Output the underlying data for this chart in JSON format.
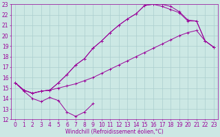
{
  "bg_color": "#cce8e4",
  "grid_color": "#aacece",
  "line_color": "#990099",
  "xlim": [
    -0.5,
    23.5
  ],
  "ylim": [
    12,
    23
  ],
  "xticks": [
    0,
    1,
    2,
    3,
    4,
    5,
    6,
    7,
    8,
    9,
    10,
    11,
    12,
    13,
    14,
    15,
    16,
    17,
    18,
    19,
    20,
    21,
    22,
    23
  ],
  "yticks": [
    12,
    13,
    14,
    15,
    16,
    17,
    18,
    19,
    20,
    21,
    22,
    23
  ],
  "xlabel": "Windchill (Refroidissement éolien,°C)",
  "series": [
    {
      "x": [
        0,
        1,
        2,
        3,
        4,
        5,
        6,
        7,
        8,
        9
      ],
      "y": [
        15.5,
        14.7,
        14.0,
        13.7,
        14.1,
        13.8,
        12.7,
        12.3,
        12.7,
        13.5
      ]
    },
    {
      "x": [
        0,
        1,
        2,
        3,
        4,
        5,
        6,
        7,
        8,
        9,
        10,
        11,
        12,
        13,
        14,
        15,
        16,
        17,
        18,
        19,
        20,
        21,
        22,
        23
      ],
      "y": [
        15.5,
        14.8,
        14.5,
        14.7,
        14.8,
        15.0,
        15.2,
        15.4,
        15.7,
        16.0,
        16.4,
        16.8,
        17.2,
        17.6,
        18.0,
        18.4,
        18.8,
        19.2,
        19.6,
        20.0,
        20.3,
        20.5,
        19.5,
        18.9
      ]
    },
    {
      "x": [
        0,
        1,
        2,
        3,
        4,
        5,
        6,
        7,
        8,
        9,
        10,
        11,
        12,
        13,
        14,
        15,
        16,
        17,
        18,
        19,
        20,
        21,
        22,
        23
      ],
      "y": [
        15.5,
        14.8,
        14.5,
        14.7,
        14.8,
        15.5,
        16.3,
        17.2,
        17.8,
        18.8,
        19.5,
        20.3,
        21.0,
        21.6,
        22.1,
        22.9,
        23.0,
        23.0,
        22.8,
        22.3,
        21.5,
        21.4,
        19.5,
        18.9
      ]
    },
    {
      "x": [
        0,
        1,
        2,
        3,
        4,
        5,
        6,
        7,
        8,
        9,
        10,
        11,
        12,
        13,
        14,
        15,
        16,
        17,
        18,
        19,
        20,
        21,
        22,
        23
      ],
      "y": [
        15.5,
        14.8,
        14.5,
        14.7,
        14.8,
        15.5,
        16.3,
        17.2,
        17.8,
        18.8,
        19.5,
        20.3,
        21.0,
        21.6,
        22.1,
        22.9,
        23.0,
        22.8,
        22.5,
        22.2,
        21.4,
        21.4,
        19.5,
        18.9
      ]
    }
  ],
  "tick_fontsize": 5.5,
  "xlabel_fontsize": 5.5
}
